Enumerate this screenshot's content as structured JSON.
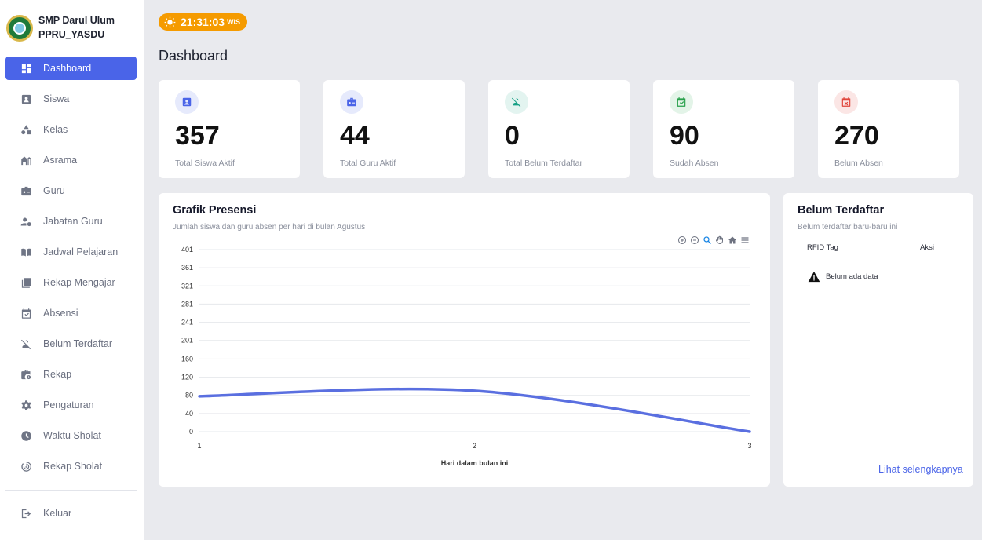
{
  "brand": {
    "line1": "SMP Darul Ulum",
    "line2": "PPRU_YASDU"
  },
  "sidebar": {
    "items": [
      {
        "label": "Dashboard",
        "icon": "dashboard-icon",
        "active": true
      },
      {
        "label": "Siswa",
        "icon": "student-badge-icon"
      },
      {
        "label": "Kelas",
        "icon": "shapes-icon"
      },
      {
        "label": "Asrama",
        "icon": "dormitory-icon"
      },
      {
        "label": "Guru",
        "icon": "teacher-briefcase-icon"
      },
      {
        "label": "Jabatan Guru",
        "icon": "user-gear-icon"
      },
      {
        "label": "Jadwal Pelajaran",
        "icon": "book-open-icon"
      },
      {
        "label": "Rekap Mengajar",
        "icon": "library-icon"
      },
      {
        "label": "Absensi",
        "icon": "calendar-check-icon"
      },
      {
        "label": "Belum Terdaftar",
        "icon": "person-off-icon"
      },
      {
        "label": "Rekap",
        "icon": "work-history-icon"
      },
      {
        "label": "Pengaturan",
        "icon": "gear-icon"
      },
      {
        "label": "Waktu Sholat",
        "icon": "clock-icon"
      },
      {
        "label": "Rekap Sholat",
        "icon": "target-icon"
      }
    ],
    "logout": "Keluar"
  },
  "clock": {
    "time": "21:31:03",
    "zone": "WIS"
  },
  "page_title": "Dashboard",
  "stats": [
    {
      "value": "357",
      "label": "Total Siswa Aktif",
      "icon": "student-badge-icon",
      "color": "#4a64e8"
    },
    {
      "value": "44",
      "label": "Total Guru Aktif",
      "icon": "teacher-briefcase-icon",
      "color": "#4a64e8"
    },
    {
      "value": "0",
      "label": "Total Belum Terdaftar",
      "icon": "person-off-icon",
      "color": "#16a085"
    },
    {
      "value": "90",
      "label": "Sudah Absen",
      "icon": "calendar-check-icon",
      "color": "#27a04a"
    },
    {
      "value": "270",
      "label": "Belum Absen",
      "icon": "calendar-x-icon",
      "color": "#e0443a"
    }
  ],
  "chart_card": {
    "title": "Grafik Presensi",
    "subtitle": "Jumlah siswa dan guru absen per hari di bulan Agustus"
  },
  "chart_data": {
    "type": "area",
    "x": [
      1,
      2,
      3
    ],
    "series": [
      {
        "values": [
          78,
          90,
          0
        ]
      }
    ],
    "xlabel": "Hari dalam bulan ini",
    "ylabel": "",
    "yticks": [
      0,
      40,
      80,
      120,
      160,
      201,
      241,
      281,
      321,
      361,
      401
    ],
    "ylim": [
      0,
      401
    ],
    "xticks": [
      1,
      2,
      3
    ],
    "grid": true,
    "line_color": "#5a6fe0"
  },
  "chart_toolbar": [
    "zoom-in-icon",
    "zoom-out-icon",
    "magnifier-icon",
    "pan-hand-icon",
    "home-icon",
    "menu-icon"
  ],
  "unregistered_card": {
    "title": "Belum Terdaftar",
    "subtitle": "Belum terdaftar baru-baru ini",
    "columns": [
      "RFID Tag",
      "Aksi"
    ],
    "empty_text": "Belum ada data",
    "link": "Lihat selengkapnya"
  }
}
